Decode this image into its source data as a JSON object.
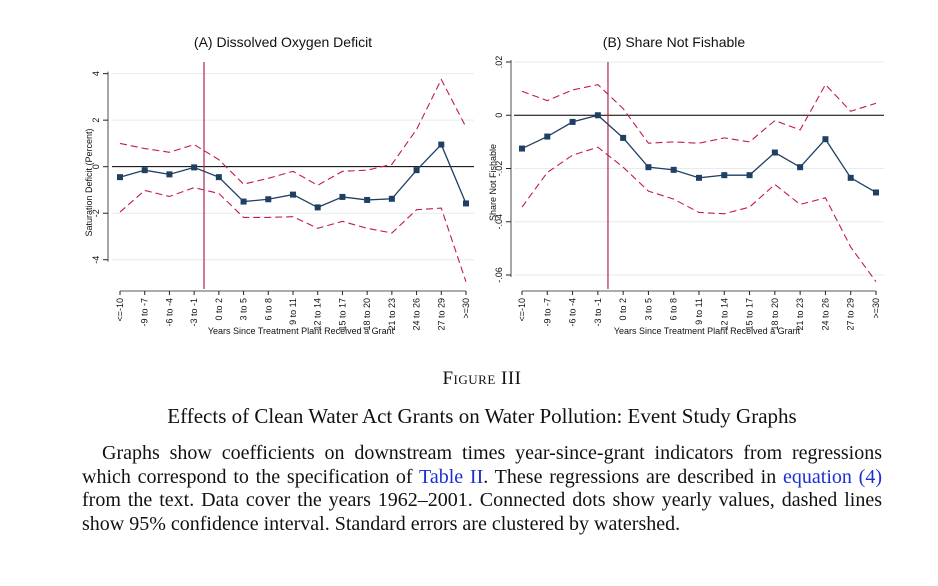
{
  "figure": {
    "label": "Figure III",
    "title": "Effects of Clean Water Act Grants on Water Pollution: Event Study Graphs",
    "body_1": "Graphs show coefficients on downstream times year-since-grant indicators from regressions which correspond to the specification of ",
    "link_table": "Table II",
    "body_2": ". These regressions are described in ",
    "link_equation": "equation (4)",
    "body_3": " from the text. Data cover the years 1962–2001. Connected dots show yearly values, dashed lines show 95% confidence interval. Standard errors are clustered by watershed."
  },
  "colors": {
    "series": "#1f3f63",
    "ci": "#c2185b",
    "vline": "#b0284a",
    "zero": "#000000"
  },
  "chart_data": [
    {
      "type": "line",
      "title": "(A) Dissolved Oxygen Deficit",
      "xlabel": "Years Since Treatment Plant Received a Grant",
      "ylabel": "Saturation Deficit (Percent)",
      "categories": [
        "<=-10",
        "-9 to -7",
        "-6 to -4",
        "-3 to -1",
        "0 to 2",
        "3 to 5",
        "6 to 8",
        "9 to 11",
        "12 to 14",
        "15 to 17",
        "18 to 20",
        "21 to 23",
        "24 to 26",
        "27 to 29",
        ">=30"
      ],
      "ylim": [
        -5,
        4.5
      ],
      "yticks": [
        -4,
        -2,
        0,
        2,
        4
      ],
      "ytick_labels": [
        "-4",
        "-2",
        "0",
        "2",
        "4"
      ],
      "vline_after_index": 3,
      "grid": true,
      "series": [
        {
          "values": [
            -0.45,
            -0.15,
            -0.33,
            -0.03,
            -0.45,
            -1.5,
            -1.4,
            -1.2,
            -1.75,
            -1.3,
            -1.43,
            -1.38,
            -0.15,
            0.95,
            -1.58
          ]
        },
        {
          "values": [
            1.0,
            0.78,
            0.62,
            0.95,
            0.3,
            -0.75,
            -0.5,
            -0.2,
            -0.8,
            -0.2,
            -0.15,
            0.1,
            1.6,
            3.75,
            1.7
          ]
        },
        {
          "values": [
            -1.95,
            -1.02,
            -1.28,
            -0.9,
            -1.15,
            -2.18,
            -2.18,
            -2.15,
            -2.65,
            -2.35,
            -2.65,
            -2.85,
            -1.85,
            -1.78,
            -4.95
          ]
        }
      ]
    },
    {
      "type": "line",
      "title": "(B) Share Not Fishable",
      "xlabel": "Years Since Treatment Plant Received a Grant",
      "ylabel": "Share Not Fishable",
      "categories": [
        "<=-10",
        "-9 to -7",
        "-6 to -4",
        "-3 to -1",
        "0 to 2",
        "3 to 5",
        "6 to 8",
        "9 to 11",
        "12 to 14",
        "15 to 17",
        "18 to 20",
        "21 to 23",
        "24 to 26",
        "27 to 29",
        ">=30"
      ],
      "ylim": [
        -0.063,
        0.02
      ],
      "yticks": [
        -0.06,
        -0.04,
        -0.02,
        0,
        0.02
      ],
      "ytick_labels": [
        "-.06",
        "-.04",
        "-.02",
        "0",
        ".02"
      ],
      "vline_after_index": 3,
      "grid": true,
      "series": [
        {
          "values": [
            -0.0125,
            -0.008,
            -0.0025,
            0.0,
            -0.0085,
            -0.0195,
            -0.0205,
            -0.0235,
            -0.0225,
            -0.0225,
            -0.014,
            -0.0195,
            -0.009,
            -0.0235,
            -0.029
          ]
        },
        {
          "values": [
            0.009,
            0.0055,
            0.0095,
            0.0115,
            0.0025,
            -0.0105,
            -0.01,
            -0.0105,
            -0.0085,
            -0.01,
            -0.002,
            -0.0055,
            0.0115,
            0.0015,
            0.0045
          ]
        },
        {
          "values": [
            -0.0345,
            -0.0215,
            -0.015,
            -0.012,
            -0.0195,
            -0.0285,
            -0.0315,
            -0.0365,
            -0.037,
            -0.0345,
            -0.026,
            -0.0335,
            -0.031,
            -0.0495,
            -0.0625
          ]
        }
      ]
    }
  ]
}
